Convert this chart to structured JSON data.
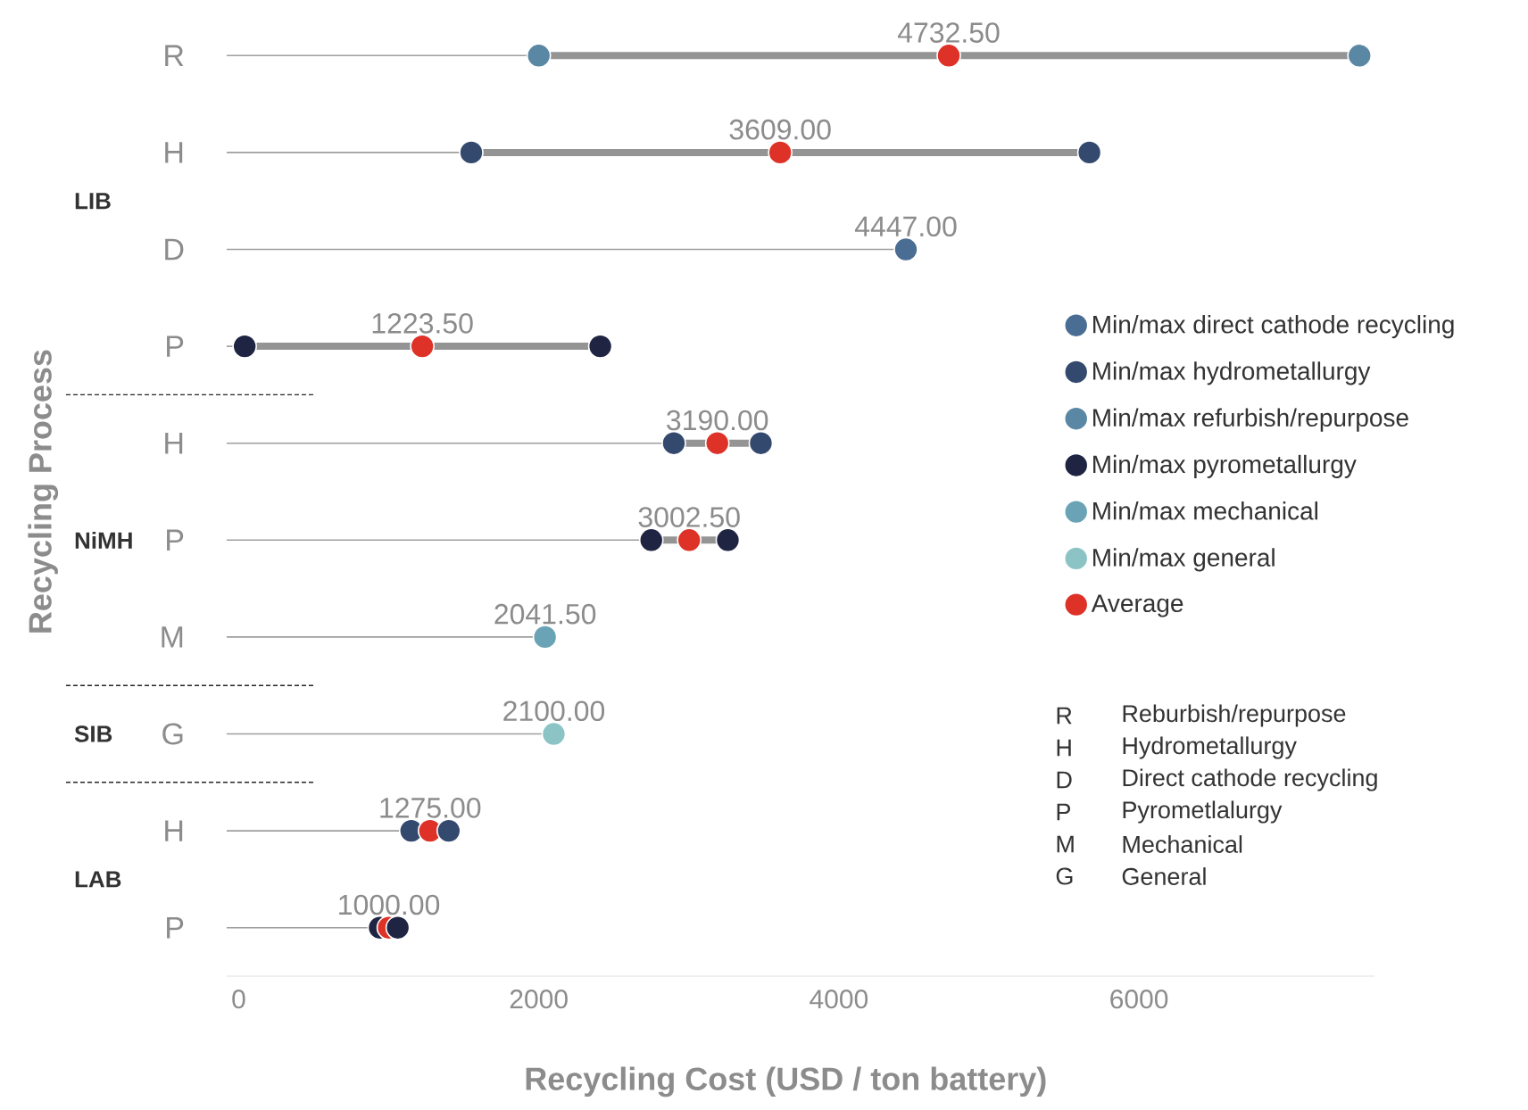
{
  "chart_data": {
    "type": "scatter",
    "orientation": "horizontal",
    "xlabel": "Recycling Cost (USD / ton battery)",
    "ylabel": "Recycling Process",
    "categories": [
      "R",
      "H",
      "D",
      "P",
      "H",
      "P",
      "M",
      "G",
      "H",
      "P"
    ],
    "xlim": [
      -80,
      7570
    ],
    "xticks": [
      0,
      2000,
      4000,
      6000
    ],
    "legend": "right",
    "series": [
      {
        "name": "Min/max direct cathode recycling",
        "color": "#4a6d94",
        "values": [
          null,
          null,
          4447,
          null,
          null,
          null,
          null,
          null,
          null,
          null
        ],
        "value_labels": [
          null,
          null,
          "4447.00",
          null,
          null,
          null,
          null,
          null,
          null,
          null
        ]
      },
      {
        "name": "Min/max hydrometallurgy",
        "color": "#34496e",
        "values": [
          null,
          1550,
          null,
          null,
          2900,
          null,
          null,
          null,
          1150,
          null
        ]
      },
      {
        "name": "Min/max refurbish/repurpose",
        "color": "#5a87a3",
        "values": [
          2000,
          null,
          null,
          null,
          null,
          null,
          null,
          null,
          null,
          null
        ]
      },
      {
        "name": "Min/max pyrometallurgy",
        "color": "#1e2442",
        "values": [
          null,
          null,
          null,
          40,
          null,
          2750,
          null,
          null,
          null,
          940
        ]
      },
      {
        "name": "Min/max mechanical",
        "color": "#6aa3b5",
        "values": [
          null,
          null,
          null,
          null,
          null,
          null,
          2041.5,
          null,
          null,
          null
        ],
        "value_labels": [
          null,
          null,
          null,
          null,
          null,
          null,
          "2041.50",
          null,
          null,
          null
        ]
      },
      {
        "name": "Min/max general",
        "color": "#8cc4c6",
        "values": [
          null,
          null,
          null,
          null,
          null,
          null,
          null,
          2100,
          null,
          null
        ],
        "value_labels": [
          null,
          null,
          null,
          null,
          null,
          null,
          null,
          "2100.00",
          null,
          null
        ]
      },
      {
        "name": "Average",
        "color": "#de3127",
        "values": [
          4732.5,
          3609,
          null,
          1223.5,
          3190,
          3002.5,
          null,
          null,
          1275,
          1000
        ],
        "value_labels": [
          "4732.50",
          "3609.00",
          null,
          "1223.50",
          "3190.00",
          "3002.50",
          null,
          null,
          "1275.00",
          "1000.00"
        ]
      },
      {
        "color": "#34496e",
        "values": [
          null,
          5670,
          null,
          null,
          3480,
          null,
          null,
          null,
          1400,
          null
        ]
      },
      {
        "color": "#5a87a3",
        "values": [
          7470,
          null,
          null,
          null,
          null,
          null,
          null,
          null,
          null,
          null
        ]
      },
      {
        "color": "#1e2442",
        "values": [
          null,
          null,
          null,
          2410,
          null,
          3260,
          null,
          null,
          null,
          1060
        ]
      }
    ],
    "annotations": [
      "LIB",
      "NiMH",
      "SIB",
      "LAB",
      "R",
      "Reburbish/repurpose",
      "H",
      "Hydrometallurgy",
      "D",
      "Direct cathode recycling",
      "P",
      "Pyrometlalurgy",
      "M",
      "Mechanical",
      "G",
      "General"
    ]
  }
}
